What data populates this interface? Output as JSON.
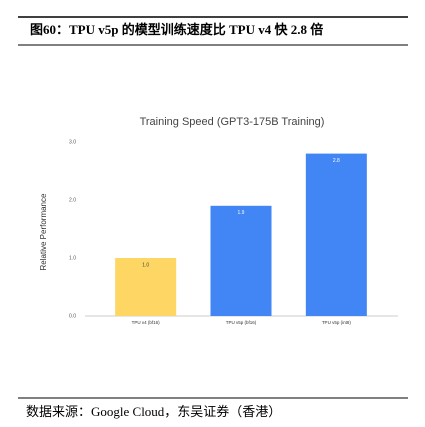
{
  "header": {
    "title": "图60：TPU v5p 的模型训练速度比 TPU v4 快 2.8 倍"
  },
  "chart_data": {
    "type": "bar",
    "title": "Training Speed (GPT3-175B Training)",
    "y_label": "Relative Performance",
    "categories": [
      "TPU v4 (bf16)",
      "TPU v5p (bf16)",
      "TPU v5p (int8)"
    ],
    "values": [
      1.0,
      1.9,
      2.8
    ],
    "value_labels": [
      "1.0",
      "1.9",
      "2.8"
    ],
    "colors": [
      "#fdd663",
      "#4285f4",
      "#4285f4"
    ],
    "ylim": [
      0,
      3
    ],
    "yticks": [
      {
        "value": 0,
        "label": "0.0"
      },
      {
        "value": 1,
        "label": "1.0"
      },
      {
        "value": 2,
        "label": "2.0"
      },
      {
        "value": 3,
        "label": "3.0"
      }
    ],
    "grid": false
  },
  "footer": {
    "source": "数据来源：Google Cloud，东吴证券（香港）"
  }
}
